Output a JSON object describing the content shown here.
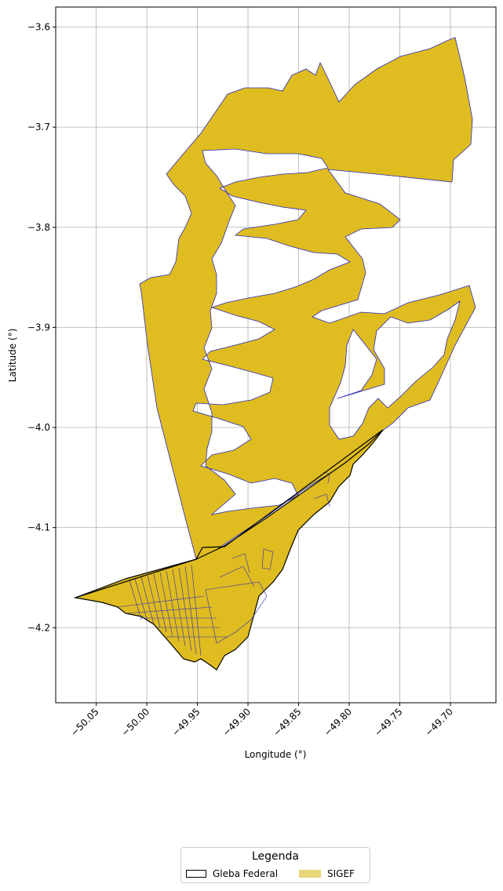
{
  "chart_data": {
    "type": "map",
    "xlabel": "Longitude (°)",
    "ylabel": "Latitude (°)",
    "xlim": [
      -50.09,
      -49.655
    ],
    "ylim": [
      -4.275,
      -3.58
    ],
    "x_ticks": [
      -50.05,
      -50.0,
      -49.95,
      -49.9,
      -49.85,
      -49.8,
      -49.75,
      -49.7
    ],
    "x_tick_labels": [
      "−50.05",
      "−50.00",
      "−49.95",
      "−49.90",
      "−49.85",
      "−49.80",
      "−49.75",
      "−49.70"
    ],
    "y_ticks": [
      -3.6,
      -3.7,
      -3.8,
      -3.9,
      -4.0,
      -4.1,
      -4.2
    ],
    "y_tick_labels": [
      "−3.6",
      "−3.7",
      "−3.8",
      "−3.9",
      "−4.0",
      "−4.1",
      "−4.2"
    ],
    "grid": true,
    "layers": [
      {
        "name": "Gleba Federal",
        "style": "outline",
        "color": "#000000"
      },
      {
        "name": "SIGEF",
        "style": "fill",
        "color": "#dfbc20",
        "edge_color": "#2b2bb8"
      }
    ],
    "legend": {
      "title": "Legenda",
      "placement": "bottom-center",
      "entries": [
        "Gleba Federal",
        "SIGEF"
      ]
    }
  }
}
